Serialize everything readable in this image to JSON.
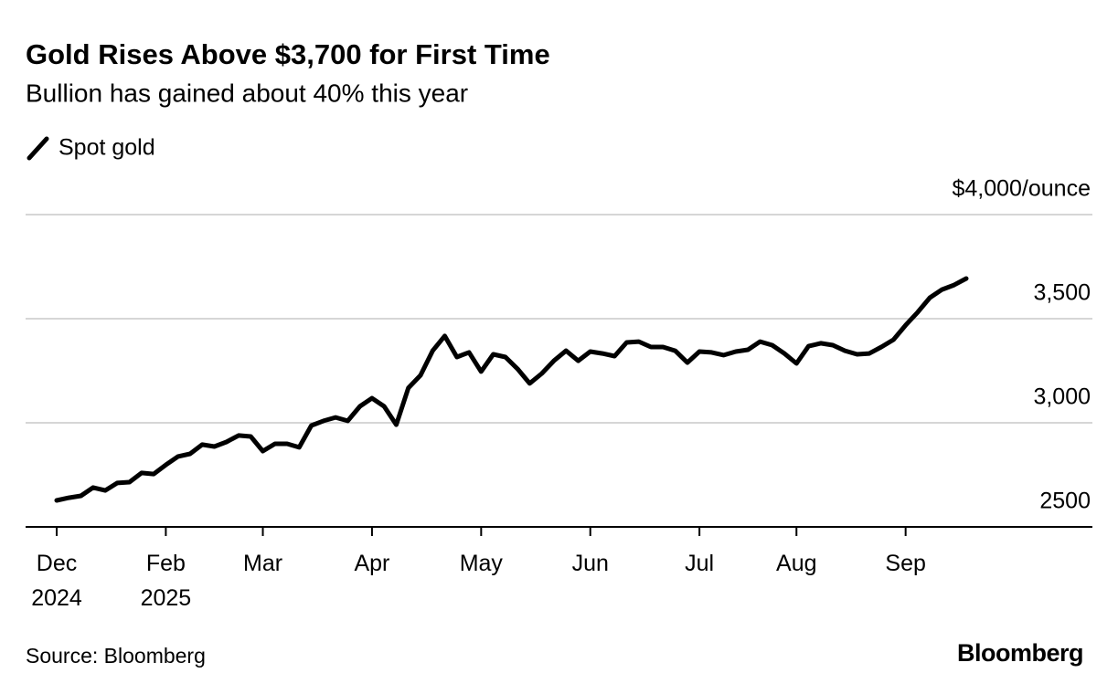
{
  "chart_data": {
    "type": "line",
    "title": "Gold Rises Above $3,700 for First Time",
    "subtitle": "Bullion has gained about 40% this year",
    "source": "Source: Bloomberg",
    "brand": "Bloomberg",
    "categories": [
      "Dec 2024",
      null,
      null,
      null,
      null,
      null,
      null,
      null,
      null,
      "Feb 2025",
      null,
      null,
      null,
      null,
      null,
      null,
      null,
      "Mar",
      null,
      null,
      null,
      null,
      null,
      null,
      null,
      null,
      "Apr",
      null,
      null,
      null,
      null,
      null,
      null,
      null,
      null,
      "May",
      null,
      null,
      null,
      null,
      null,
      null,
      null,
      null,
      "Jun",
      null,
      null,
      null,
      null,
      null,
      null,
      null,
      null,
      "Jul",
      null,
      null,
      null,
      null,
      null,
      null,
      null,
      "Aug",
      null,
      null,
      null,
      null,
      null,
      null,
      null,
      null,
      "Sep",
      null,
      null,
      null,
      null,
      null
    ],
    "series": [
      {
        "name": "Spot gold",
        "color": "#000000",
        "values": [
          2627,
          2640,
          2649,
          2689,
          2675,
          2711,
          2715,
          2759,
          2754,
          2798,
          2838,
          2851,
          2895,
          2886,
          2908,
          2939,
          2934,
          2864,
          2899,
          2899,
          2882,
          2987,
          3009,
          3026,
          3009,
          3079,
          3118,
          3079,
          2991,
          3167,
          3228,
          3346,
          3417,
          3316,
          3338,
          3246,
          3329,
          3316,
          3259,
          3189,
          3237,
          3298,
          3346,
          3298,
          3342,
          3333,
          3320,
          3386,
          3390,
          3364,
          3364,
          3346,
          3289,
          3342,
          3338,
          3325,
          3342,
          3351,
          3390,
          3373,
          3333,
          3285,
          3368,
          3382,
          3373,
          3346,
          3329,
          3333,
          3364,
          3399,
          3469,
          3531,
          3601,
          3640,
          3662,
          3693
        ]
      }
    ],
    "ylim": [
      2500,
      4000
    ],
    "yticks": [
      2500,
      {
        "value": 3000,
        "label": "3,000"
      },
      {
        "value": 3500,
        "label": "3,500"
      },
      {
        "value": 4000,
        "label": "$4,000/ounce"
      }
    ],
    "grid": true
  }
}
